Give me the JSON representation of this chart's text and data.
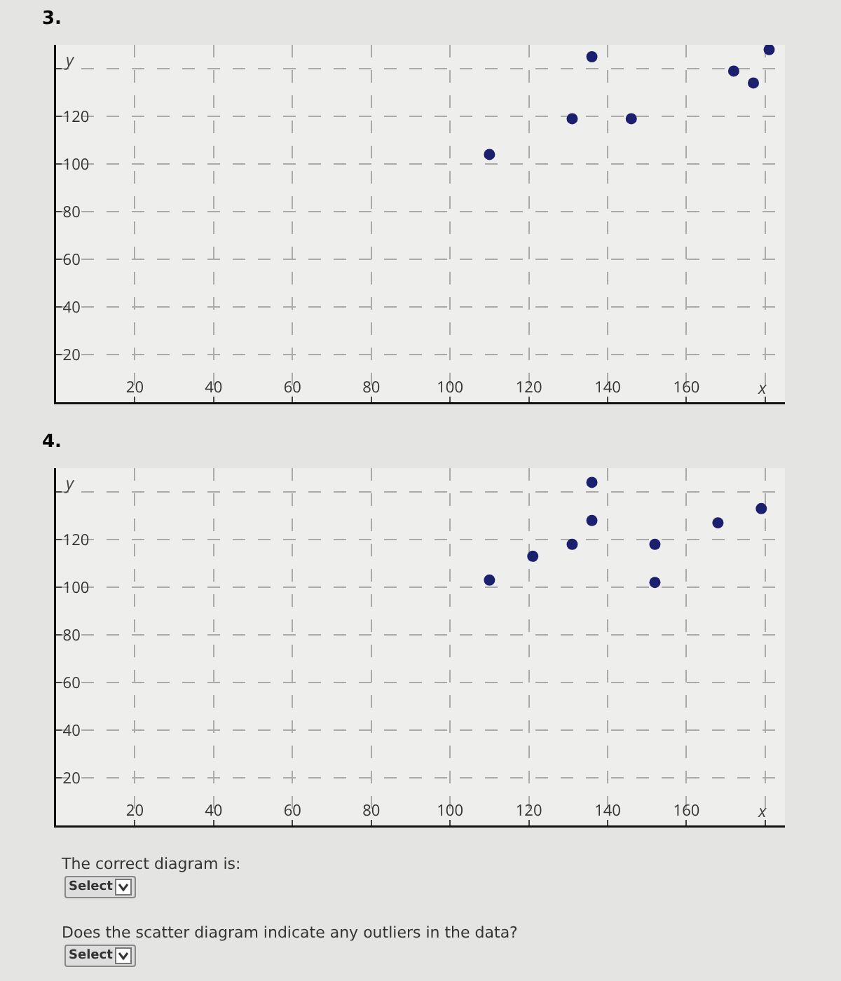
{
  "chart_data": [
    {
      "type": "scatter",
      "title": "3.",
      "xlabel": "x",
      "ylabel": "y",
      "color": "#1a1f6e",
      "marker": "circle",
      "grid": true,
      "x": [
        110,
        131,
        136,
        146,
        172,
        177,
        181
      ],
      "values": [
        104,
        119,
        145,
        119,
        139,
        134,
        148
      ],
      "xlim": [
        0,
        185
      ],
      "ylim": [
        0,
        150
      ],
      "xticks": [
        20,
        40,
        60,
        80,
        100,
        120,
        140,
        160,
        {
          "value": 180,
          "label": null
        }
      ],
      "yticks": [
        20,
        40,
        60,
        80,
        100,
        120,
        {
          "value": 140,
          "label": null
        }
      ]
    },
    {
      "type": "scatter",
      "title": "4.",
      "xlabel": "x",
      "ylabel": "y",
      "color": "#1a1f6e",
      "marker": "circle",
      "grid": true,
      "x": [
        110,
        121,
        131,
        136,
        136,
        152,
        152,
        168,
        179
      ],
      "values": [
        103,
        113,
        118,
        128,
        144,
        118,
        102,
        127,
        133
      ],
      "xlim": [
        0,
        185
      ],
      "ylim": [
        0,
        150
      ],
      "xticks": [
        20,
        40,
        60,
        80,
        100,
        120,
        140,
        160,
        {
          "value": 180,
          "label": null
        }
      ],
      "yticks": [
        20,
        40,
        60,
        80,
        100,
        120,
        {
          "value": 140,
          "label": null
        }
      ],
      "annotations": [
        "The correct diagram is:",
        "Select",
        "Does the scatter diagram indicate any outliers in the data?",
        "Select"
      ]
    }
  ]
}
